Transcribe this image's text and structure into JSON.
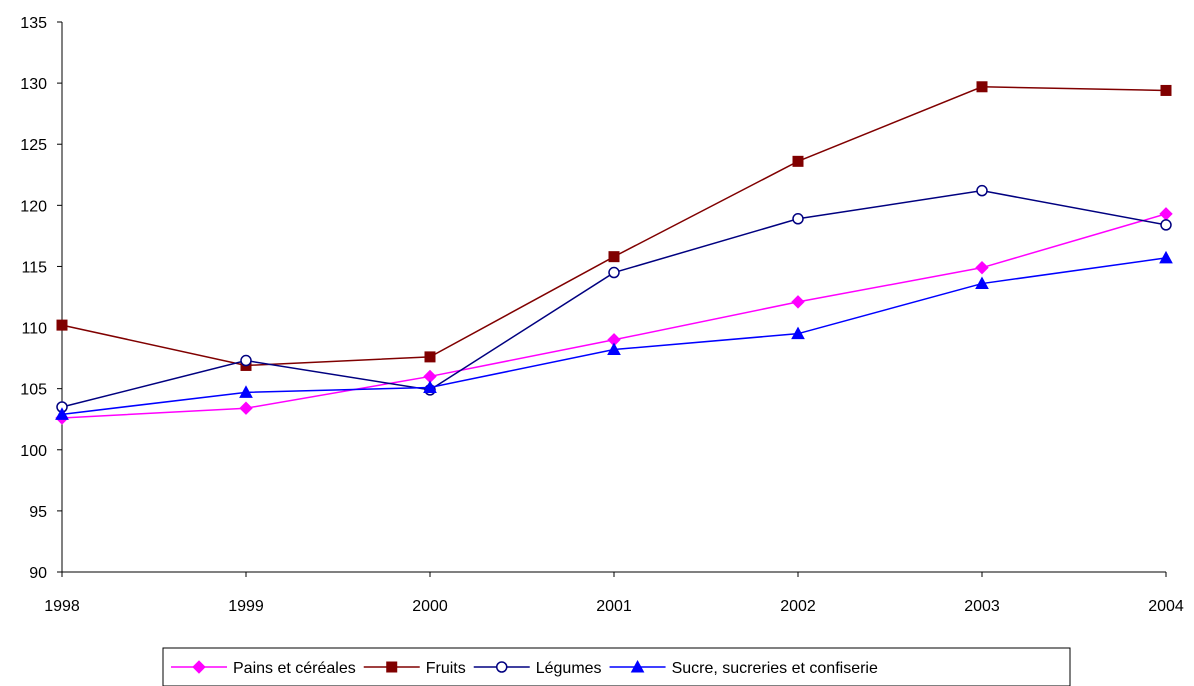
{
  "chart_data": {
    "type": "line",
    "title": "",
    "xlabel": "",
    "ylabel": "",
    "categories": [
      "1998",
      "1999",
      "2000",
      "2001",
      "2002",
      "2003",
      "2004"
    ],
    "ylim": [
      90,
      135
    ],
    "yticks": [
      90,
      95,
      100,
      105,
      110,
      115,
      120,
      125,
      130,
      135
    ],
    "grid": false,
    "legend_position": "bottom",
    "series": [
      {
        "name": "Pains et céréales",
        "color": "#ff00ff",
        "marker": "diamond",
        "values": [
          102.6,
          103.4,
          106.0,
          109.0,
          112.1,
          114.9,
          119.3
        ]
      },
      {
        "name": "Fruits",
        "color": "#800000",
        "marker": "square",
        "values": [
          110.2,
          106.9,
          107.6,
          115.8,
          123.6,
          129.7,
          129.4
        ]
      },
      {
        "name": "Légumes",
        "color": "#000080",
        "marker": "circle-open",
        "values": [
          103.5,
          107.3,
          104.9,
          114.5,
          118.9,
          121.2,
          118.4
        ]
      },
      {
        "name": "Sucre, sucreries et confiserie",
        "color": "#0000ff",
        "marker": "triangle",
        "values": [
          102.9,
          104.7,
          105.1,
          108.2,
          109.5,
          113.6,
          115.7
        ]
      }
    ]
  }
}
